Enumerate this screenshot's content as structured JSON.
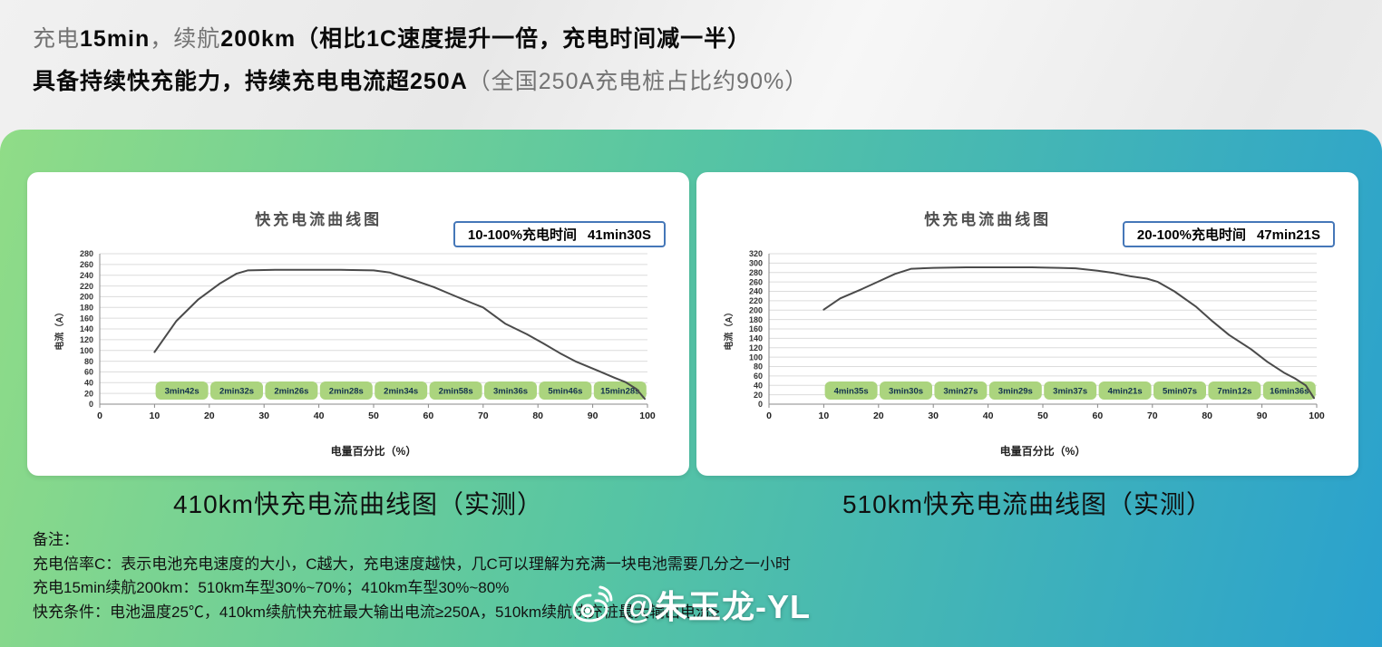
{
  "header": {
    "line1": [
      {
        "text": "充电"
      },
      {
        "text": "15min"
      },
      {
        "text": "，续航"
      },
      {
        "text": "200km"
      },
      {
        "text": "（相比1C速度提升一倍，充电时间减一半）"
      }
    ],
    "line2": [
      {
        "text": "具备持续快充能力，持续充电电流超250A"
      },
      {
        "text": "（全国250A充电桩占比约90%）"
      }
    ]
  },
  "chart_data": [
    {
      "type": "line",
      "title": "快充电流曲线图",
      "time_label": "10-100%充电时间",
      "time_value": "41min30S",
      "xlabel": "电量百分比（%）",
      "ylabel": "电流（A）",
      "xlim": [
        0,
        100
      ],
      "xtick_step": 10,
      "ylim": [
        0,
        280
      ],
      "ytick_step": 20,
      "grid": "horizontal",
      "legend": "none",
      "line_color": "#4a4a4a",
      "band_color": "#abd47e",
      "band_label_color": "#12314e",
      "points": [
        [
          10,
          97
        ],
        [
          14,
          155
        ],
        [
          18,
          195
        ],
        [
          22,
          225
        ],
        [
          25,
          243
        ],
        [
          27,
          249
        ],
        [
          32,
          250
        ],
        [
          38,
          250
        ],
        [
          44,
          250
        ],
        [
          50,
          249
        ],
        [
          53,
          245
        ],
        [
          57,
          232
        ],
        [
          61,
          218
        ],
        [
          64,
          205
        ],
        [
          68,
          188
        ],
        [
          70,
          180
        ],
        [
          74,
          150
        ],
        [
          78,
          130
        ],
        [
          81,
          113
        ],
        [
          84,
          95
        ],
        [
          87,
          79
        ],
        [
          91,
          62
        ],
        [
          94,
          49
        ],
        [
          96,
          41
        ],
        [
          98,
          28
        ],
        [
          99.5,
          10
        ]
      ],
      "segment_times": [
        "3min42s",
        "2min32s",
        "2min26s",
        "2min28s",
        "2min34s",
        "2min58s",
        "3min36s",
        "5min46s",
        "15min28s"
      ],
      "caption": "410km快充电流曲线图（实测）"
    },
    {
      "type": "line",
      "title": "快充电流曲线图",
      "time_label": "20-100%充电时间",
      "time_value": "47min21S",
      "xlabel": "电量百分比（%）",
      "ylabel": "电流（A）",
      "xlim": [
        0,
        100
      ],
      "xtick_step": 10,
      "ylim": [
        0,
        320
      ],
      "ytick_step": 20,
      "grid": "horizontal",
      "legend": "none",
      "line_color": "#4a4a4a",
      "band_color": "#abd47e",
      "band_label_color": "#12314e",
      "points": [
        [
          10,
          201
        ],
        [
          13,
          225
        ],
        [
          17,
          245
        ],
        [
          20,
          261
        ],
        [
          23,
          277
        ],
        [
          26,
          288
        ],
        [
          30,
          290
        ],
        [
          36,
          291
        ],
        [
          42,
          291
        ],
        [
          48,
          291
        ],
        [
          53,
          290
        ],
        [
          56,
          289
        ],
        [
          60,
          284
        ],
        [
          63,
          279
        ],
        [
          66,
          272
        ],
        [
          69,
          267
        ],
        [
          71,
          260
        ],
        [
          74,
          240
        ],
        [
          78,
          207
        ],
        [
          81,
          176
        ],
        [
          84,
          147
        ],
        [
          88,
          117
        ],
        [
          91,
          90
        ],
        [
          94,
          67
        ],
        [
          96,
          55
        ],
        [
          98,
          40
        ],
        [
          99.5,
          13
        ]
      ],
      "segment_times": [
        "4min35s",
        "3min30s",
        "3min27s",
        "3min29s",
        "3min37s",
        "4min21s",
        "5min07s",
        "7min12s",
        "16min36s"
      ],
      "caption": "510km快充电流曲线图（实测）"
    }
  ],
  "notes": {
    "title": "备注：",
    "line1": "充电倍率C：表示电池充电速度的大小，C越大，充电速度越快，几C可以理解为充满一块电池需要几分之一小时",
    "line2": "充电15min续航200km：510km车型30%~70%；410km车型30%~80%",
    "line3": "快充条件：电池温度25℃，410km续航快充桩最大输出电流≥250A，510km续航快充桩最大输出电流≥"
  },
  "watermark": {
    "text": "@朱玉龙-YL",
    "icon": "weibo-logo"
  },
  "colors": {
    "gradient_left": "#90dc87",
    "gradient_right": "#2aa1ce",
    "panel_bg": "#ffffff",
    "time_box_border": "#4577b8",
    "band_green": "#abd47e",
    "curve_gray": "#4a4a4a"
  }
}
